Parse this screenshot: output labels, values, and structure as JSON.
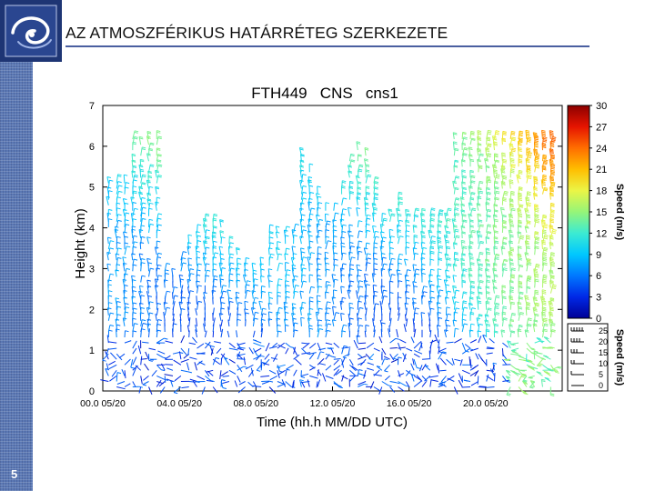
{
  "slide": {
    "title": "AZ ATMOSZFÉRIKUS HATÁRRÉTEG SZERKEZETE",
    "page_number": "5"
  },
  "colors": {
    "sidebar": "#5b78b4",
    "logo_bg": "#1e3574",
    "rule": "#4a5fa0"
  },
  "icons": {
    "logo": "swirl-logo-icon"
  },
  "chart_data": {
    "type": "heatmap",
    "title": "FTH449   CNS   cns1",
    "xlabel": "Time (hh.h MM/DD UTC)",
    "ylabel": "Height (km)",
    "xlim": [
      0,
      24
    ],
    "ylim": [
      0,
      7
    ],
    "x_ticks": [
      {
        "v": 0,
        "label": "00.0 05/20"
      },
      {
        "v": 4,
        "label": "04.0 05/20"
      },
      {
        "v": 8,
        "label": "08.0 05/20"
      },
      {
        "v": 12,
        "label": "12.0 05/20"
      },
      {
        "v": 16,
        "label": "16.0 05/20"
      },
      {
        "v": 20,
        "label": "20.0 05/20"
      }
    ],
    "y_ticks": [
      {
        "v": 0,
        "label": "0"
      },
      {
        "v": 1,
        "label": "1"
      },
      {
        "v": 2,
        "label": "2"
      },
      {
        "v": 3,
        "label": "3"
      },
      {
        "v": 4,
        "label": "4"
      },
      {
        "v": 5,
        "label": "5"
      },
      {
        "v": 6,
        "label": "6"
      },
      {
        "v": 7,
        "label": "7"
      }
    ],
    "colorbar": {
      "label": "Speed (m/s)",
      "range": [
        0,
        30
      ],
      "ticks": [
        {
          "v": 30,
          "label": "30"
        },
        {
          "v": 27,
          "label": "27"
        },
        {
          "v": 24,
          "label": "24"
        },
        {
          "v": 21,
          "label": "21"
        },
        {
          "v": 18,
          "label": "18"
        },
        {
          "v": 15,
          "label": "15"
        },
        {
          "v": 12,
          "label": "12"
        },
        {
          "v": 9,
          "label": "9"
        },
        {
          "v": 6,
          "label": "6"
        },
        {
          "v": 3,
          "label": "3"
        },
        {
          "v": 0,
          "label": "0"
        }
      ]
    },
    "barb_key": {
      "label": "Speed (m/s)",
      "entries": [
        {
          "speed": 25,
          "label": "25"
        },
        {
          "speed": 20,
          "label": "20"
        },
        {
          "speed": 15,
          "label": "15"
        },
        {
          "speed": 10,
          "label": "10"
        },
        {
          "speed": 5,
          "label": "5"
        },
        {
          "speed": 0,
          "label": "0"
        }
      ]
    }
  }
}
